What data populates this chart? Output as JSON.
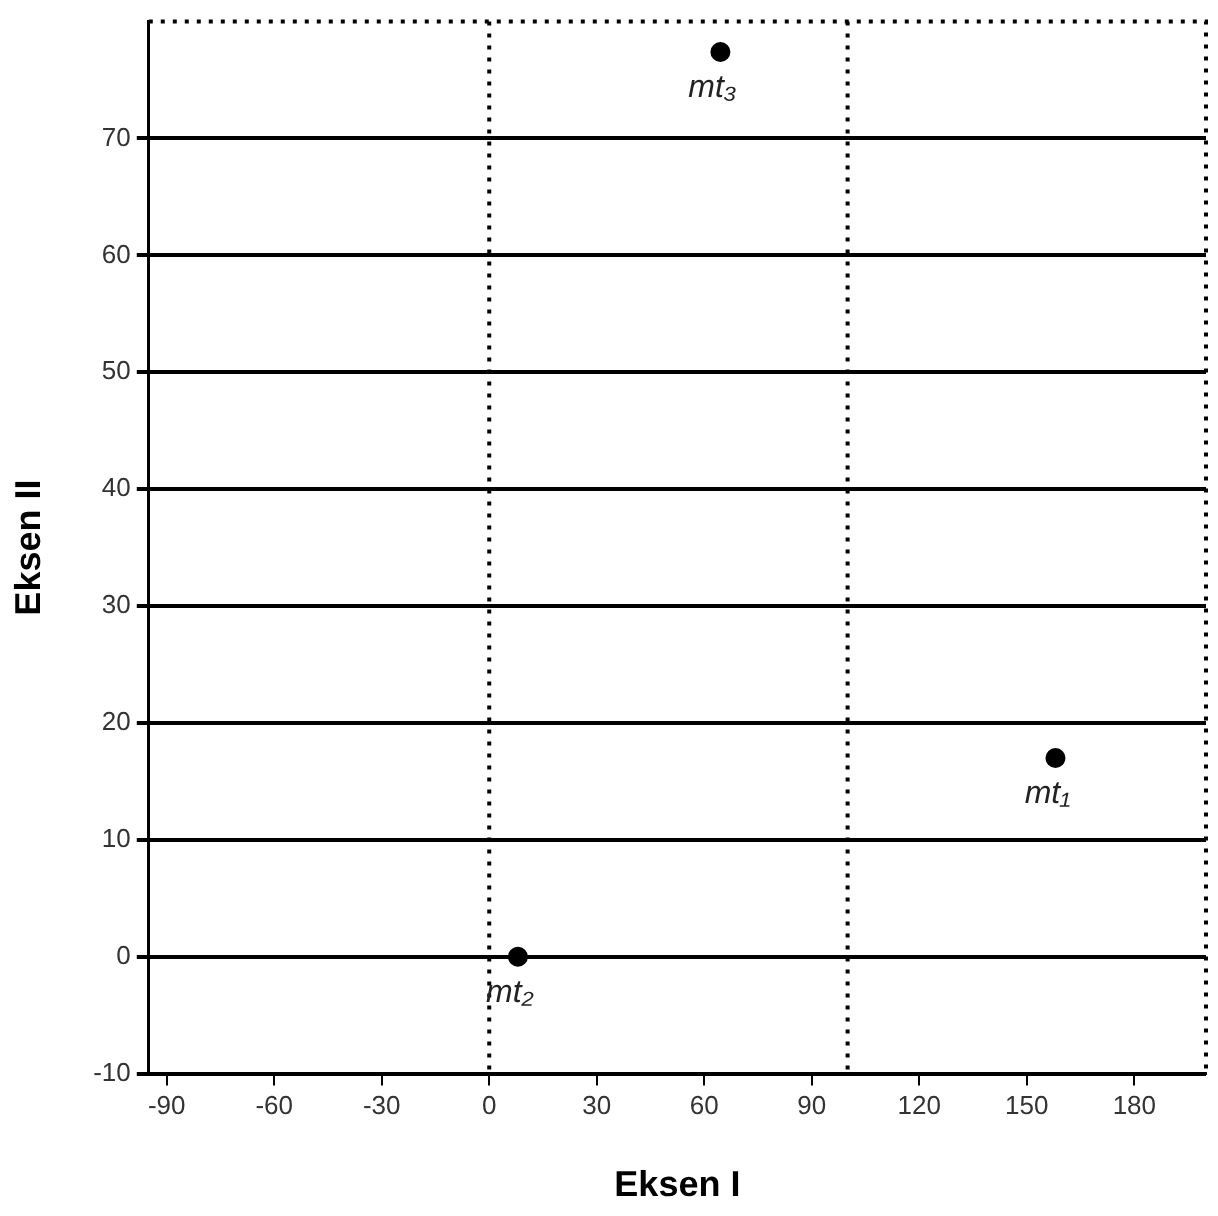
{
  "chart_data": {
    "type": "scatter",
    "xlabel": "Eksen I",
    "ylabel": "Eksen II",
    "x": [
      158,
      8,
      64.5
    ],
    "values": [
      17,
      0,
      77.4
    ],
    "color": "#000000",
    "marker": "circle",
    "xlim": [
      -95,
      200
    ],
    "xticks": [
      -90,
      -60,
      -30,
      0,
      30,
      60,
      90,
      120,
      150,
      180
    ],
    "ylim": [
      -10,
      80
    ],
    "yticks": [
      -10,
      0,
      10,
      20,
      30,
      40,
      50,
      60,
      70
    ],
    "grid": "y",
    "legend": false,
    "ref_lines": [
      {
        "axis": "x",
        "value": 0,
        "color": "#000000",
        "line_style": "dotted"
      },
      {
        "axis": "x",
        "value": 100,
        "color": "#000000",
        "line_style": "dotted"
      }
    ],
    "annotations": [
      {
        "text": "mt₁",
        "x": 158,
        "y": 17
      },
      {
        "text": "mt₂",
        "x": 8,
        "y": 0
      },
      {
        "text": "mt₃",
        "x": 64.5,
        "y": 77.4
      }
    ]
  }
}
